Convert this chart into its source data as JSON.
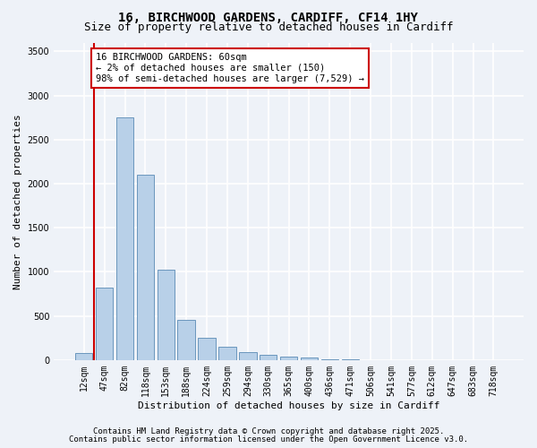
{
  "title_line1": "16, BIRCHWOOD GARDENS, CARDIFF, CF14 1HY",
  "title_line2": "Size of property relative to detached houses in Cardiff",
  "xlabel": "Distribution of detached houses by size in Cardiff",
  "ylabel": "Number of detached properties",
  "categories": [
    "12sqm",
    "47sqm",
    "82sqm",
    "118sqm",
    "153sqm",
    "188sqm",
    "224sqm",
    "259sqm",
    "294sqm",
    "330sqm",
    "365sqm",
    "400sqm",
    "436sqm",
    "471sqm",
    "506sqm",
    "541sqm",
    "577sqm",
    "612sqm",
    "647sqm",
    "683sqm",
    "718sqm"
  ],
  "values": [
    75,
    820,
    2750,
    2100,
    1020,
    460,
    250,
    150,
    90,
    60,
    40,
    25,
    10,
    5,
    2,
    1,
    1,
    0,
    0,
    0,
    0
  ],
  "bar_color": "#b8d0e8",
  "bar_edge_color": "#5a8ab5",
  "property_line_color": "#cc0000",
  "annotation_text": "16 BIRCHWOOD GARDENS: 60sqm\n← 2% of detached houses are smaller (150)\n98% of semi-detached houses are larger (7,529) →",
  "annotation_box_color": "#ffffff",
  "annotation_box_edge_color": "#cc0000",
  "ylim": [
    0,
    3600
  ],
  "yticks": [
    0,
    500,
    1000,
    1500,
    2000,
    2500,
    3000,
    3500
  ],
  "footnote1": "Contains HM Land Registry data © Crown copyright and database right 2025.",
  "footnote2": "Contains public sector information licensed under the Open Government Licence v3.0.",
  "bg_color": "#eef2f8",
  "grid_color": "#ffffff",
  "title_fontsize": 10,
  "subtitle_fontsize": 9,
  "axis_label_fontsize": 8,
  "tick_fontsize": 7,
  "annotation_fontsize": 7.5,
  "footnote_fontsize": 6.5
}
